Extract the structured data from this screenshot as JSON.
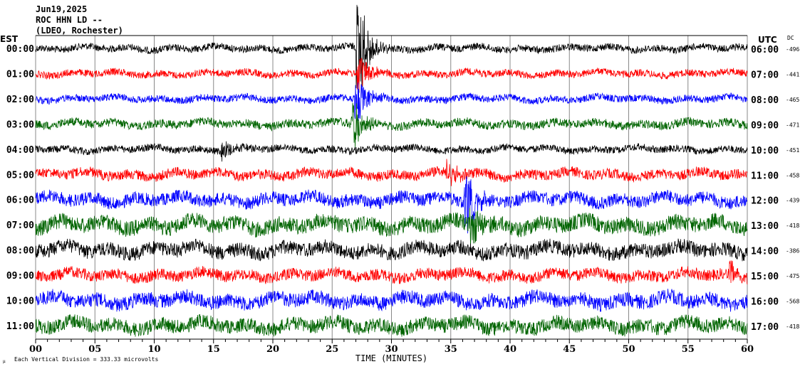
{
  "header": {
    "date": "Jun19,2025",
    "station": "ROC HHN LD --",
    "network": "(LDEO, Rochester)"
  },
  "chart_data": {
    "type": "line",
    "title": "Jun19,2025 ROC HHN LD -- (LDEO, Rochester)",
    "xlabel": "TIME (MINUTES)",
    "xlim": [
      0,
      60
    ],
    "x_ticks": [
      "00",
      "05",
      "10",
      "15",
      "20",
      "25",
      "30",
      "35",
      "40",
      "45",
      "50",
      "55",
      "60"
    ],
    "left_axis_title": "EST",
    "right_axis_title": "UTC",
    "dc_title": "DC",
    "scale_note": "Each Vertical Division =  333.33 microvolts",
    "grid": true,
    "colors": [
      "#000000",
      "#ff0000",
      "#0000ff",
      "#006400"
    ],
    "rows": [
      {
        "est": "00:00",
        "utc": "06:00",
        "dc": "-496",
        "noise": 5
      },
      {
        "est": "01:00",
        "utc": "07:00",
        "dc": "-441",
        "noise": 5
      },
      {
        "est": "02:00",
        "utc": "08:00",
        "dc": "-465",
        "noise": 5
      },
      {
        "est": "03:00",
        "utc": "09:00",
        "dc": "-471",
        "noise": 6
      },
      {
        "est": "04:00",
        "utc": "10:00",
        "dc": "-451",
        "noise": 5
      },
      {
        "est": "05:00",
        "utc": "11:00",
        "dc": "-458",
        "noise": 7
      },
      {
        "est": "06:00",
        "utc": "12:00",
        "dc": "-439",
        "noise": 9
      },
      {
        "est": "07:00",
        "utc": "13:00",
        "dc": "-418",
        "noise": 11
      },
      {
        "est": "08:00",
        "utc": "14:00",
        "dc": "-386",
        "noise": 10
      },
      {
        "est": "09:00",
        "utc": "15:00",
        "dc": "-475",
        "noise": 8
      },
      {
        "est": "10:00",
        "utc": "16:00",
        "dc": "-568",
        "noise": 10
      },
      {
        "est": "11:00",
        "utc": "17:00",
        "dc": "-418",
        "noise": 10
      }
    ],
    "events": [
      {
        "row": 0,
        "minute": 27.4,
        "amp": 70
      },
      {
        "row": 1,
        "minute": 27.5,
        "amp": 25
      },
      {
        "row": 2,
        "minute": 27.3,
        "amp": 30
      },
      {
        "row": 3,
        "minute": 27.0,
        "amp": 35
      },
      {
        "row": 4,
        "minute": 16.0,
        "amp": 12
      },
      {
        "row": 5,
        "minute": 35.0,
        "amp": 15
      },
      {
        "row": 6,
        "minute": 36.5,
        "amp": 45
      },
      {
        "row": 7,
        "minute": 37.0,
        "amp": 30
      },
      {
        "row": 9,
        "minute": 58.8,
        "amp": 15
      }
    ]
  }
}
